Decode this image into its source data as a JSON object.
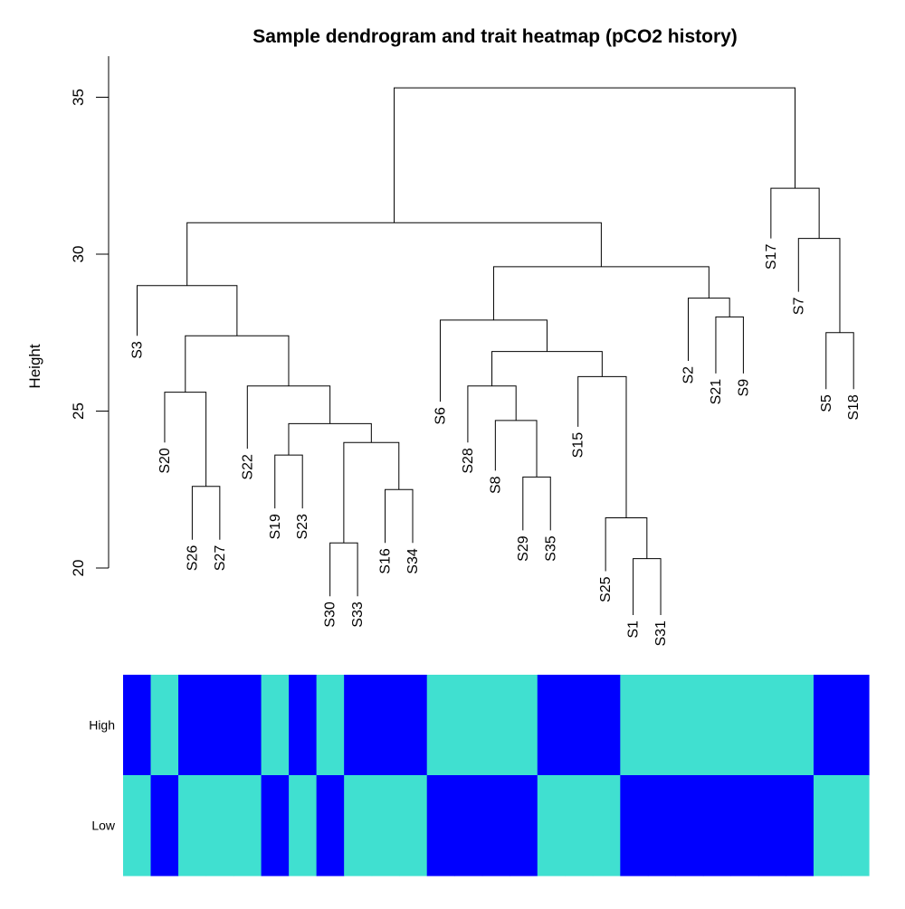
{
  "chart_data": {
    "type": "dendrogram-heatmap",
    "title": "Sample dendrogram and trait heatmap (pCO2 history)",
    "ylabel": "Height",
    "ylim": [
      20,
      35.3
    ],
    "yticks": [
      20,
      25,
      30,
      35
    ],
    "leaf_order": [
      "S3",
      "S20",
      "S26",
      "S27",
      "S22",
      "S19",
      "S23",
      "S30",
      "S33",
      "S16",
      "S34",
      "S6",
      "S28",
      "S8",
      "S29",
      "S35",
      "S15",
      "S25",
      "S1",
      "S31",
      "S2",
      "S21",
      "S9",
      "S17",
      "S7",
      "S5",
      "S18"
    ],
    "leaf_heights": {
      "S3": 27.4,
      "S20": 24.0,
      "S26": 20.9,
      "S27": 20.9,
      "S22": 23.8,
      "S19": 21.9,
      "S23": 21.9,
      "S30": 19.1,
      "S33": 19.1,
      "S16": 20.8,
      "S34": 20.8,
      "S6": 25.3,
      "S28": 24.0,
      "S8": 23.1,
      "S29": 21.2,
      "S35": 21.2,
      "S15": 24.5,
      "S25": 19.9,
      "S1": 18.5,
      "S31": 18.5,
      "S2": 26.6,
      "S21": 26.2,
      "S9": 26.2,
      "S17": 30.5,
      "S7": 28.8,
      "S5": 25.7,
      "S18": 25.7
    },
    "merges": [
      {
        "left": "S26",
        "right": "S27",
        "height": 22.6
      },
      {
        "left": "S20",
        "right": 1,
        "height": 25.6
      },
      {
        "left": "S19",
        "right": "S23",
        "height": 23.6
      },
      {
        "left": "S30",
        "right": "S33",
        "height": 20.8
      },
      {
        "left": "S16",
        "right": "S34",
        "height": 22.5
      },
      {
        "left": 4,
        "right": 5,
        "height": 24.0
      },
      {
        "left": 3,
        "right": 6,
        "height": 24.6
      },
      {
        "left": "S22",
        "right": 7,
        "height": 25.8
      },
      {
        "left": 2,
        "right": 8,
        "height": 27.4
      },
      {
        "left": "S3",
        "right": 9,
        "height": 29.0
      },
      {
        "left": "S29",
        "right": "S35",
        "height": 22.9
      },
      {
        "left": "S8",
        "right": 11,
        "height": 24.7
      },
      {
        "left": "S28",
        "right": 12,
        "height": 25.8
      },
      {
        "left": "S1",
        "right": "S31",
        "height": 20.3
      },
      {
        "left": "S25",
        "right": 14,
        "height": 21.6
      },
      {
        "left": "S15",
        "right": 15,
        "height": 26.1
      },
      {
        "left": 13,
        "right": 16,
        "height": 26.9
      },
      {
        "left": "S6",
        "right": 17,
        "height": 27.9
      },
      {
        "left": "S21",
        "right": "S9",
        "height": 28.0
      },
      {
        "left": "S2",
        "right": 19,
        "height": 28.6
      },
      {
        "left": 18,
        "right": 20,
        "height": 29.6
      },
      {
        "left": 10,
        "right": 21,
        "height": 31.0
      },
      {
        "left": "S5",
        "right": "S18",
        "height": 27.5
      },
      {
        "left": "S7",
        "right": 23,
        "height": 30.5
      },
      {
        "left": "S17",
        "right": 24,
        "height": 32.1
      },
      {
        "left": 22,
        "right": 25,
        "height": 35.3
      }
    ],
    "heatmap": {
      "rows": [
        "High",
        "Low"
      ],
      "colors": {
        "on": "#0000FF",
        "off": "#40E0D0"
      },
      "high_values": [
        1,
        0,
        1,
        1,
        1,
        0,
        1,
        0,
        1,
        1,
        1,
        0,
        0,
        0,
        0,
        1,
        1,
        1,
        0,
        0,
        0,
        0,
        0,
        0,
        0,
        1,
        1
      ]
    }
  }
}
